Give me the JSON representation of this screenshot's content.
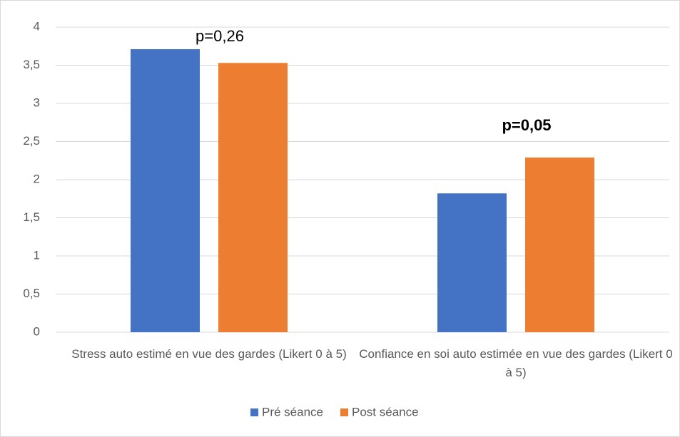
{
  "chart_data": {
    "type": "bar",
    "categories": [
      "Stress auto estimé en vue des gardes (Likert 0 à 5)",
      "Confiance en soi auto estimée en vue des gardes (Likert 0 à 5)"
    ],
    "series": [
      {
        "name": "Pré séance",
        "color": "#4472c4",
        "values": [
          3.71,
          1.82
        ]
      },
      {
        "name": "Post séance",
        "color": "#ed7d31",
        "values": [
          3.53,
          2.29
        ]
      }
    ],
    "ylim": [
      0,
      4
    ],
    "yticks": [
      0,
      {
        "value": 0.5,
        "label": "0,5"
      },
      1,
      {
        "value": 1.5,
        "label": "1,5"
      },
      2,
      {
        "value": 2.5,
        "label": "2,5"
      },
      3,
      {
        "value": 3.5,
        "label": "3,5"
      },
      4
    ],
    "grid": true,
    "legend": "bottom",
    "annotations": [
      {
        "text": "p=0,26",
        "bold": false
      },
      {
        "text": "p=0,05",
        "bold": true
      }
    ]
  }
}
